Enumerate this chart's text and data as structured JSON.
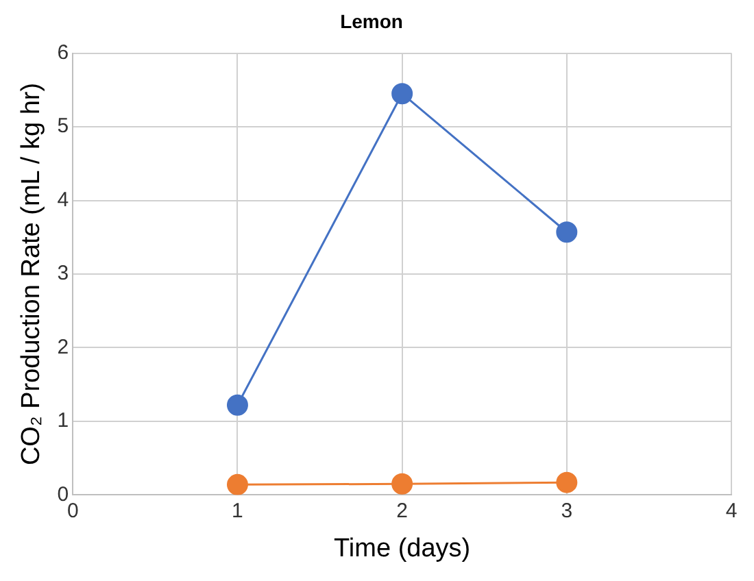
{
  "chart_data": {
    "type": "line",
    "title": "Lemon",
    "xlabel": "Time (days)",
    "ylabel": "CO₂ Production Rate (mL / kg hr)",
    "x": [
      1,
      2,
      3
    ],
    "series": [
      {
        "color": "#4472c4",
        "values": [
          1.22,
          5.45,
          3.57
        ]
      },
      {
        "color": "#ed7d31",
        "values": [
          0.14,
          0.15,
          0.17
        ]
      }
    ],
    "xlim": [
      0,
      4
    ],
    "xticks": [
      0,
      1,
      2,
      3,
      4
    ],
    "ylim": [
      0,
      6
    ],
    "yticks": [
      0,
      1,
      2,
      3,
      4,
      5,
      6
    ],
    "grid": true,
    "legend": false,
    "marker": "circle",
    "line_style": "solid"
  }
}
